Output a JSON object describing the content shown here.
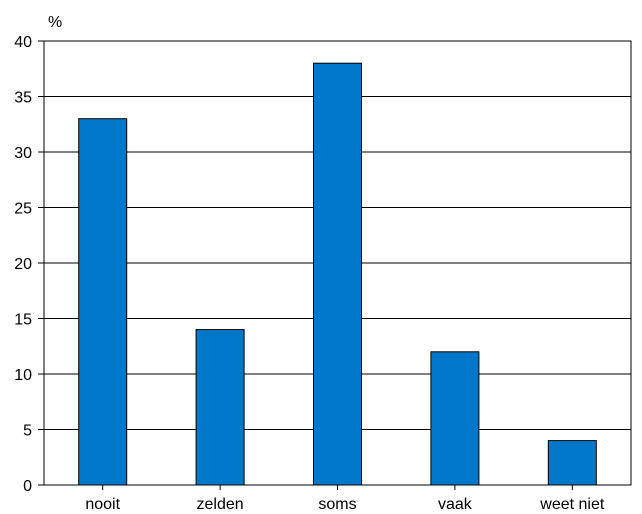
{
  "chart_data": {
    "type": "bar",
    "categories": [
      "nooit",
      "zelden",
      "soms",
      "vaak",
      "weet niet"
    ],
    "values": [
      33,
      14,
      38,
      12,
      4
    ],
    "title": "",
    "xlabel": "",
    "ylabel": "%",
    "ylim": [
      0,
      40
    ],
    "yticks": [
      0,
      5,
      10,
      15,
      20,
      25,
      30,
      35,
      40
    ],
    "grid": true,
    "legend": "none",
    "bar_color": "#0077c8",
    "bar_edge_color": "#000000"
  }
}
